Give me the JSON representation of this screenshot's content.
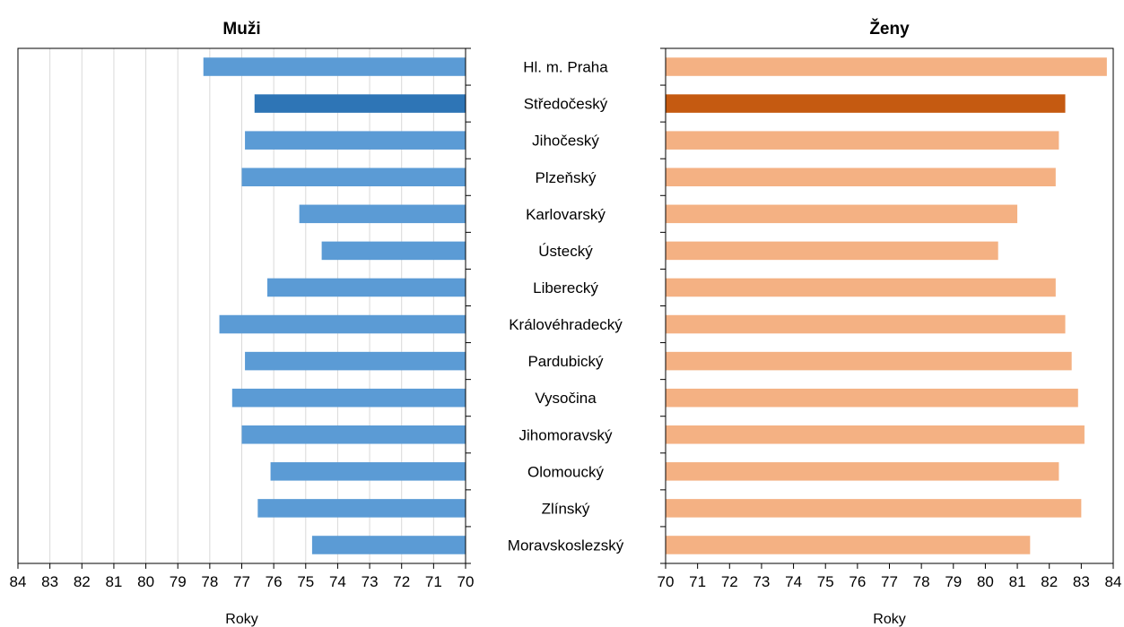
{
  "chart_data": [
    {
      "type": "bar",
      "orientation": "horizontal",
      "title": "Muži",
      "xlabel": "Roky",
      "xlim": [
        70,
        84
      ],
      "x_reversed": true,
      "grid": true,
      "categories": [
        "Hl. m. Praha",
        "Středočeský",
        "Jihočeský",
        "Plzeňský",
        "Karlovarský",
        "Ústecký",
        "Liberecký",
        "Královéhradecký",
        "Pardubický",
        "Vysočina",
        "Jihomoravský",
        "Olomoucký",
        "Zlínský",
        "Moravskoslezský"
      ],
      "values": [
        78.2,
        76.6,
        76.9,
        77.0,
        75.2,
        74.5,
        76.2,
        77.7,
        76.9,
        77.3,
        77.0,
        76.1,
        76.5,
        74.8
      ],
      "bar_color": "#5b9bd5",
      "highlight_index": 1,
      "highlight_color": "#2e75b6"
    },
    {
      "type": "bar",
      "orientation": "horizontal",
      "title": "Ženy",
      "xlabel": "Roky",
      "xlim": [
        70,
        84
      ],
      "x_reversed": false,
      "grid": false,
      "categories": [
        "Hl. m. Praha",
        "Středočeský",
        "Jihočeský",
        "Plzeňský",
        "Karlovarský",
        "Ústecký",
        "Liberecký",
        "Královéhradecký",
        "Pardubický",
        "Vysočina",
        "Jihomoravský",
        "Olomoucký",
        "Zlínský",
        "Moravskoslezský"
      ],
      "values": [
        83.8,
        82.5,
        82.3,
        82.2,
        81.0,
        80.4,
        82.2,
        82.5,
        82.7,
        82.9,
        83.1,
        82.3,
        83.0,
        81.4
      ],
      "bar_color": "#f4b183",
      "highlight_index": 1,
      "highlight_color": "#c55a11"
    }
  ]
}
